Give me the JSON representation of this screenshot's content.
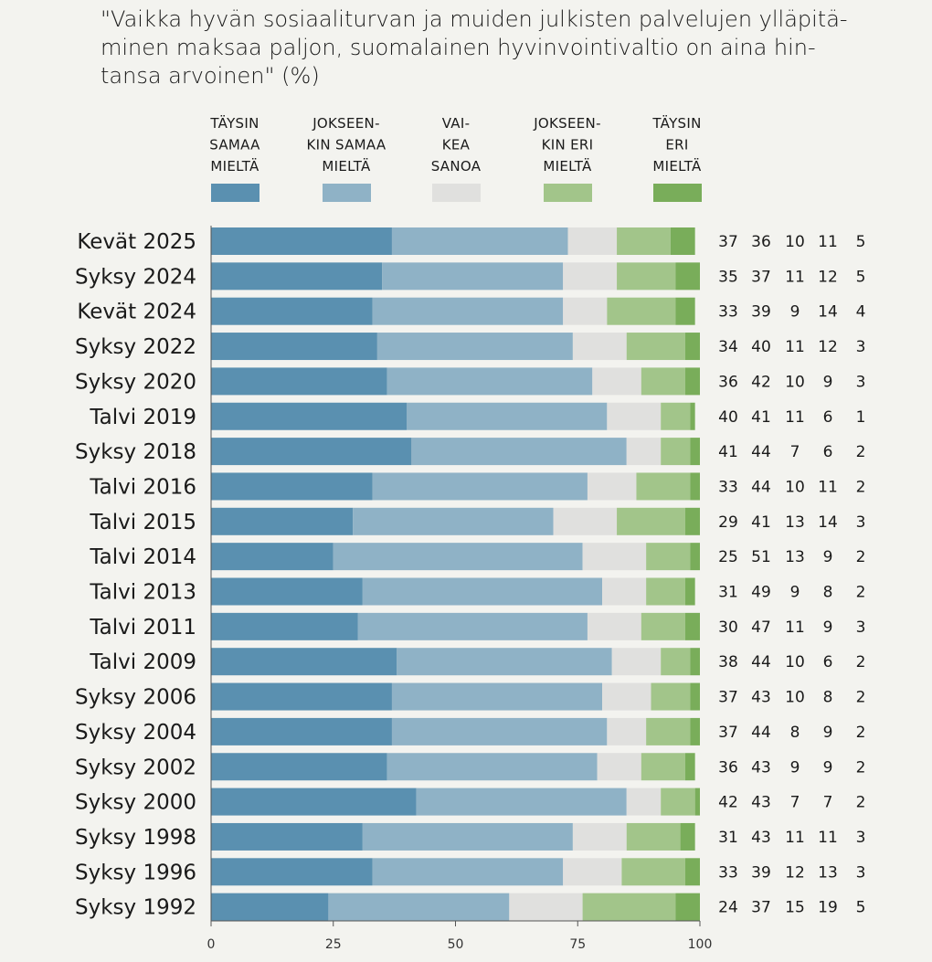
{
  "title": "\"Vaikka hyvän sosiaaliturvan ja muiden julkisten palvelujen ylläpitä-\nminen maksaa paljon, suomalainen hyvinvointivaltio on aina hin-\ntansa arvoinen\" (%)",
  "chart_data": {
    "type": "bar",
    "orientation": "horizontal",
    "stacked": true,
    "title": "\"Vaikka hyvän sosiaaliturvan ja muiden julkisten palvelujen ylläpitäminen maksaa paljon, suomalainen hyvinvointivaltio on aina hintansa arvoinen\" (%)",
    "categories": [
      "Kevät 2025",
      "Syksy 2024",
      "Kevät 2024",
      "Syksy 2022",
      "Syksy 2020",
      "Talvi 2019",
      "Syksy 2018",
      "Talvi 2016",
      "Talvi 2015",
      "Talvi 2014",
      "Talvi 2013",
      "Talvi 2011",
      "Talvi 2009",
      "Syksy 2006",
      "Syksy 2004",
      "Syksy 2002",
      "Syksy 2000",
      "Syksy 1998",
      "Syksy 1996",
      "Syksy 1992"
    ],
    "series": [
      {
        "name": "TÄYSIN SAMAA MIELTÄ",
        "legend_lines": [
          "TÄYSIN",
          "SAMAA",
          "MIELTÄ"
        ],
        "color": "#5a90b0",
        "values": [
          37,
          35,
          33,
          34,
          36,
          40,
          41,
          33,
          29,
          25,
          31,
          30,
          38,
          37,
          37,
          36,
          42,
          31,
          33,
          24
        ]
      },
      {
        "name": "JOKSEENKIN SAMAA MIELTÄ",
        "legend_lines": [
          "JOKSEEN-",
          "KIN SAMAA",
          "MIELTÄ"
        ],
        "color": "#8fb2c6",
        "values": [
          36,
          37,
          39,
          40,
          42,
          41,
          44,
          44,
          41,
          51,
          49,
          47,
          44,
          43,
          44,
          43,
          43,
          43,
          39,
          37
        ]
      },
      {
        "name": "VAIKEA SANOA",
        "legend_lines": [
          "VAI-",
          "KEA",
          "SANOA"
        ],
        "color": "#e0e0de",
        "values": [
          10,
          11,
          9,
          11,
          10,
          11,
          7,
          10,
          13,
          13,
          9,
          11,
          10,
          10,
          8,
          9,
          7,
          11,
          12,
          15
        ]
      },
      {
        "name": "JOKSEENKIN ERI MIELTÄ",
        "legend_lines": [
          "JOKSEEN-",
          "KIN ERI",
          "MIELTÄ"
        ],
        "color": "#a2c58a",
        "values": [
          11,
          12,
          14,
          12,
          9,
          6,
          6,
          11,
          14,
          9,
          8,
          9,
          6,
          8,
          9,
          9,
          7,
          11,
          13,
          19
        ]
      },
      {
        "name": "TÄYSIN ERI MIELTÄ",
        "legend_lines": [
          "TÄYSIN",
          "ERI",
          "MIELTÄ"
        ],
        "color": "#79ad5a",
        "values": [
          5,
          5,
          4,
          3,
          3,
          1,
          2,
          2,
          3,
          2,
          2,
          3,
          2,
          2,
          2,
          2,
          2,
          3,
          3,
          5
        ]
      }
    ],
    "xlim": [
      0,
      100
    ],
    "x_ticks": [
      0,
      25,
      50,
      75,
      100
    ],
    "xlabel": "",
    "ylabel": "",
    "grid": false,
    "legend_position": "top",
    "value_labels": "right-of-bars"
  }
}
